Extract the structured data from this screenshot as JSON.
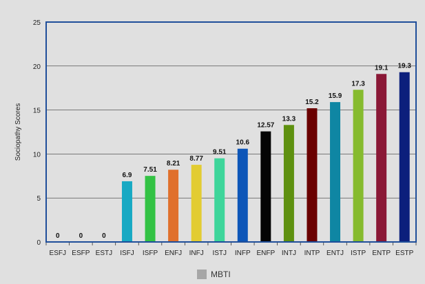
{
  "chart_data": {
    "type": "bar",
    "title": "",
    "xlabel": "",
    "ylabel": "Sociopathy Scores",
    "ylim": [
      0,
      25
    ],
    "yticks": [
      0,
      5,
      10,
      15,
      20,
      25
    ],
    "grid": true,
    "legend": {
      "label": "MBTI",
      "color": "#a6a6a6",
      "placement": "bottom-center"
    },
    "categories": [
      "ESFJ",
      "ESFP",
      "ESTJ",
      "ISFJ",
      "ISFP",
      "ENFJ",
      "INFJ",
      "ISTJ",
      "INFP",
      "ENFP",
      "INTJ",
      "INTP",
      "ENTJ",
      "ISTP",
      "ENTP",
      "ESTP"
    ],
    "values": [
      0,
      0,
      0,
      6.9,
      7.51,
      8.21,
      8.77,
      9.51,
      10.6,
      12.57,
      13.3,
      15.2,
      15.9,
      17.3,
      19.1,
      19.3
    ],
    "labels": [
      "0",
      "0",
      "0",
      "6.9",
      "7.51",
      "8.21",
      "8.77",
      "9.51",
      "10.6",
      "12.57",
      "13.3",
      "15.2",
      "15.9",
      "17.3",
      "19.1",
      "19.3"
    ],
    "colors": [
      "#a6a6a6",
      "#a6a6a6",
      "#a6a6a6",
      "#17a9c3",
      "#33c244",
      "#e0702c",
      "#e2cc32",
      "#3dd59a",
      "#0d56b8",
      "#050505",
      "#5e900f",
      "#6a0000",
      "#0f86a3",
      "#86bb2e",
      "#8a1836",
      "#0c1f7c"
    ],
    "border_color": "#1f4e9a"
  }
}
